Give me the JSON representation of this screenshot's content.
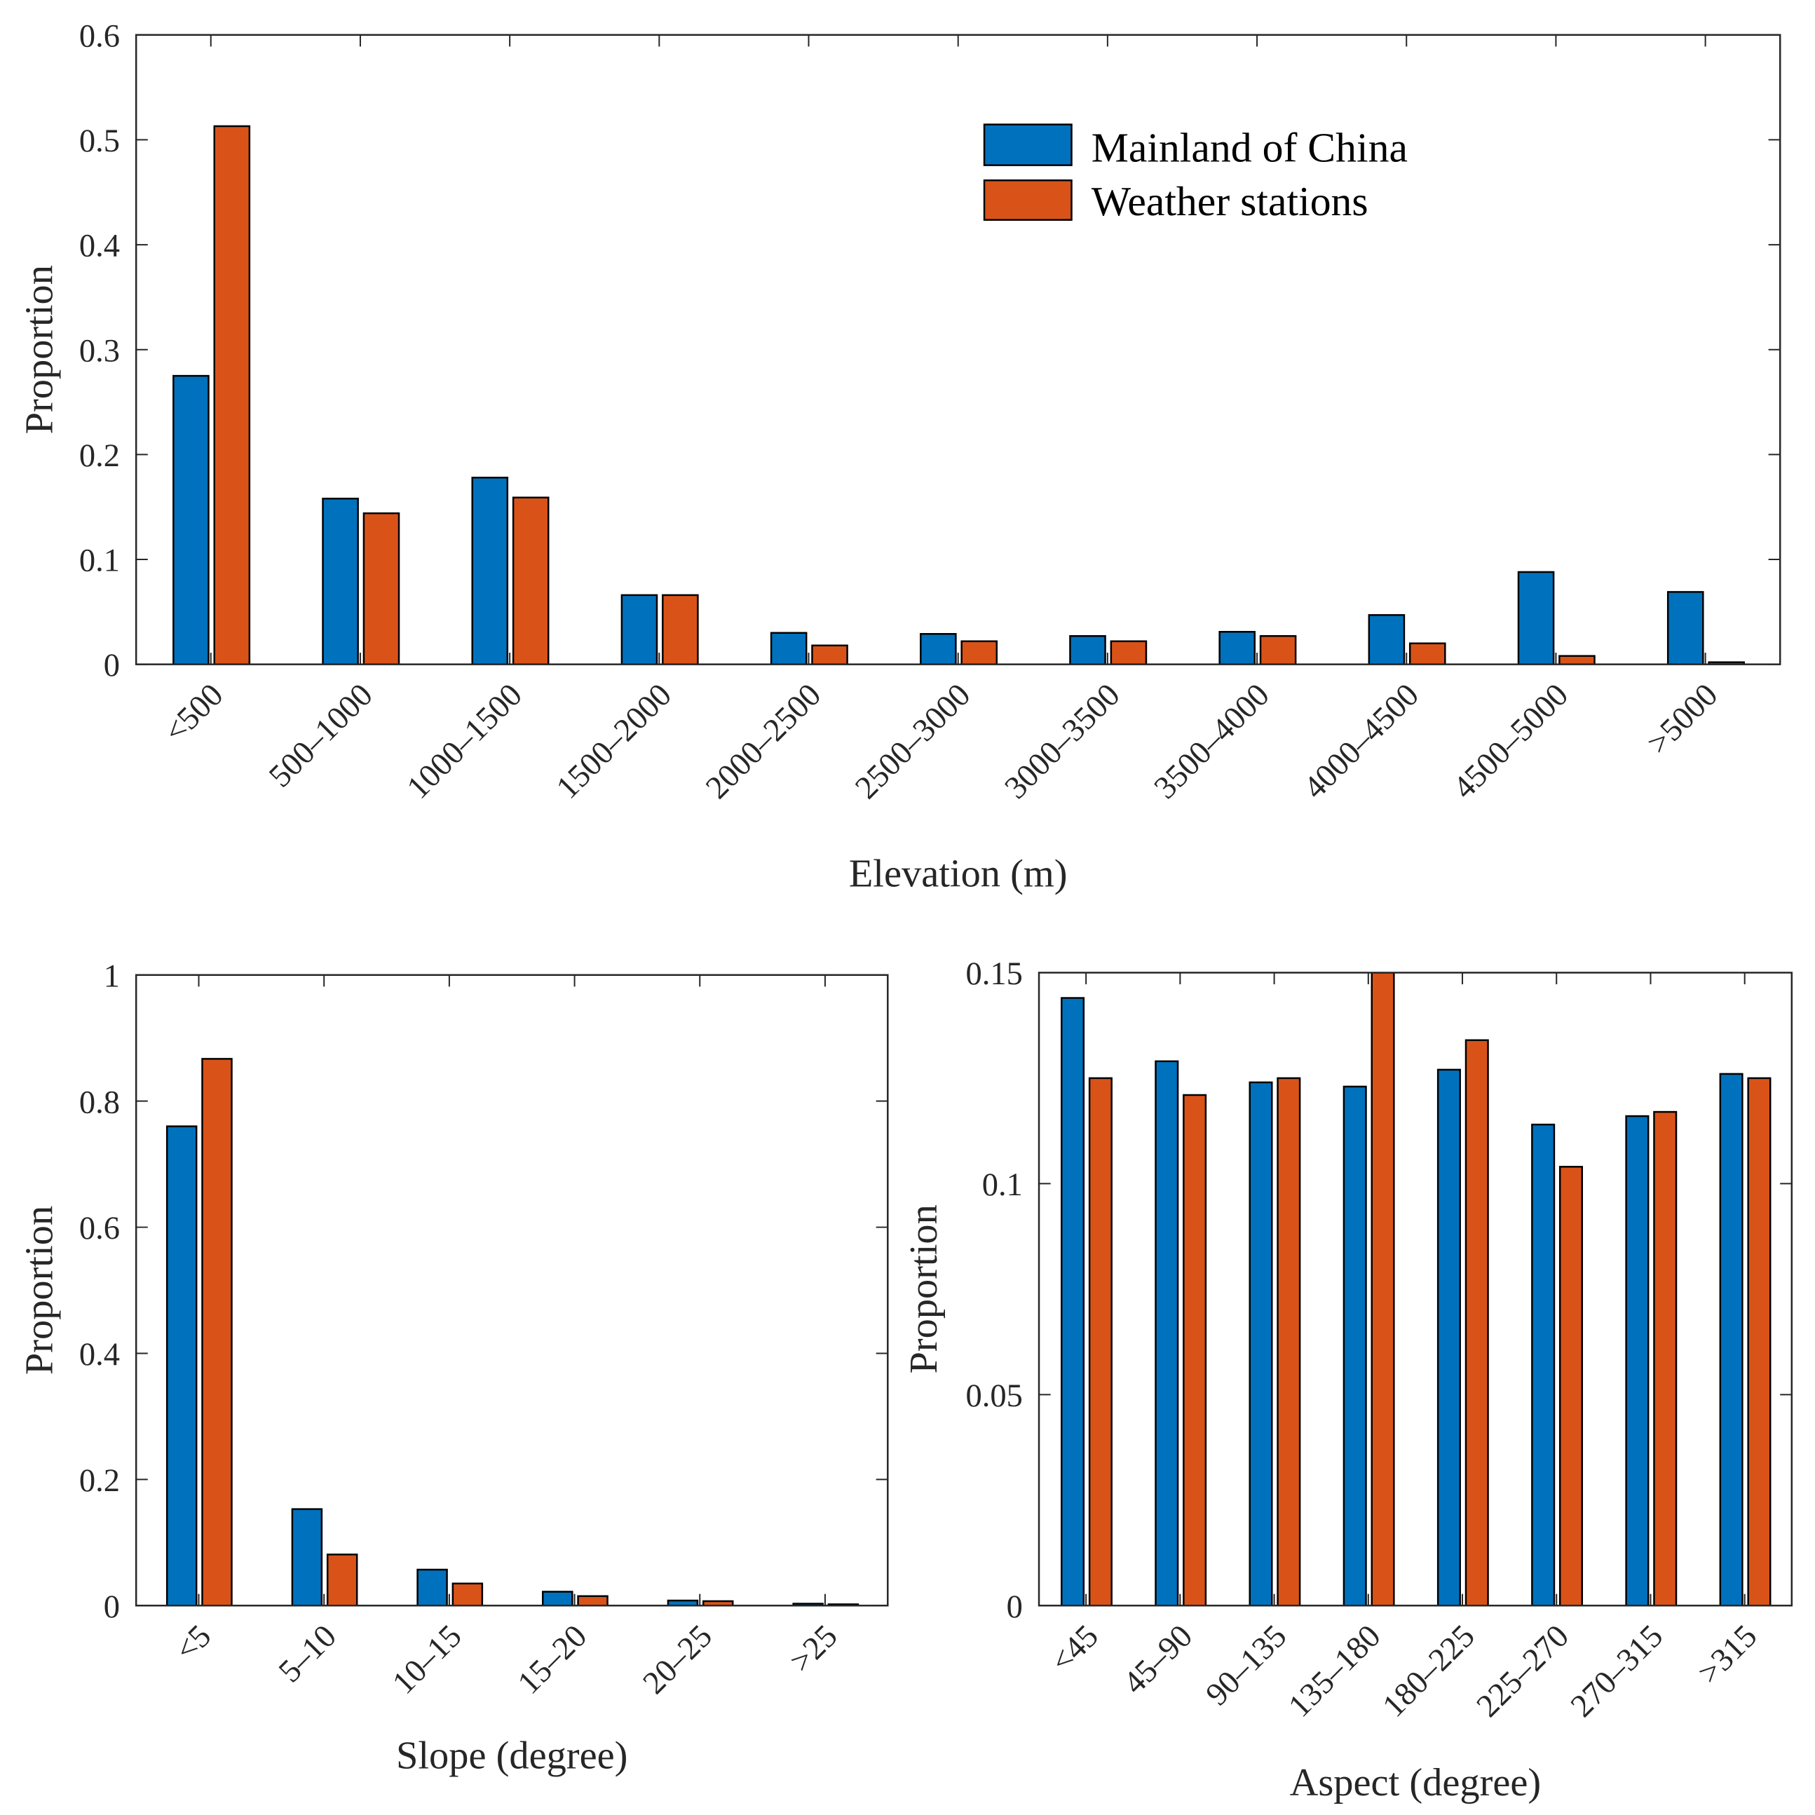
{
  "colors": {
    "mainland": "#0072BD",
    "stations": "#D95319"
  },
  "legend": {
    "labels": [
      "Mainland of China",
      "Weather stations"
    ],
    "placement": "top-right"
  },
  "chart_data": [
    {
      "type": "bar",
      "title": "",
      "xlabel": "Elevation (m)",
      "ylabel": "Proportion",
      "ylim": [
        0,
        0.6
      ],
      "yticks": [
        0,
        0.1,
        0.2,
        0.3,
        0.4,
        0.5,
        0.6
      ],
      "ytick_labels": [
        "0",
        "0.1",
        "0.2",
        "0.3",
        "0.4",
        "0.5",
        "0.6"
      ],
      "categories": [
        "<500",
        "500–1000",
        "1000–1500",
        "1500–2000",
        "2000–2500",
        "2500–3000",
        "3000–3500",
        "3500–4000",
        "4000–4500",
        "4500–5000",
        ">5000"
      ],
      "series": [
        {
          "name": "Mainland of China",
          "values": [
            0.275,
            0.158,
            0.178,
            0.066,
            0.03,
            0.029,
            0.027,
            0.031,
            0.047,
            0.088,
            0.069
          ]
        },
        {
          "name": "Weather stations",
          "values": [
            0.513,
            0.144,
            0.159,
            0.066,
            0.018,
            0.022,
            0.022,
            0.027,
            0.02,
            0.008,
            0.002
          ]
        }
      ]
    },
    {
      "type": "bar",
      "title": "",
      "xlabel": "Slope (degree)",
      "ylabel": "Proportion",
      "ylim": [
        0,
        1
      ],
      "yticks": [
        0,
        0.2,
        0.4,
        0.6,
        0.8,
        1
      ],
      "ytick_labels": [
        "0",
        "0.2",
        "0.4",
        "0.6",
        "0.8",
        "1"
      ],
      "categories": [
        "<5",
        "5–10",
        "10–15",
        "15–20",
        "20–25",
        ">25"
      ],
      "series": [
        {
          "name": "Mainland of China",
          "values": [
            0.76,
            0.153,
            0.057,
            0.022,
            0.008,
            0.003
          ]
        },
        {
          "name": "Weather stations",
          "values": [
            0.867,
            0.081,
            0.035,
            0.015,
            0.007,
            0.002
          ]
        }
      ]
    },
    {
      "type": "bar",
      "title": "",
      "xlabel": "Aspect (degree)",
      "ylabel": "Proportion",
      "ylim": [
        0,
        0.15
      ],
      "yticks": [
        0,
        0.05,
        0.1,
        0.15
      ],
      "ytick_labels": [
        "0",
        "0.05",
        "0.1",
        "0.15"
      ],
      "categories": [
        "<45",
        "45–90",
        "90–135",
        "135–180",
        "180–225",
        "225–270",
        "270–315",
        ">315"
      ],
      "series": [
        {
          "name": "Mainland of China",
          "values": [
            0.144,
            0.129,
            0.124,
            0.123,
            0.127,
            0.114,
            0.116,
            0.126
          ]
        },
        {
          "name": "Weather stations",
          "values": [
            0.125,
            0.121,
            0.125,
            0.155,
            0.134,
            0.104,
            0.117,
            0.125
          ]
        }
      ]
    }
  ]
}
